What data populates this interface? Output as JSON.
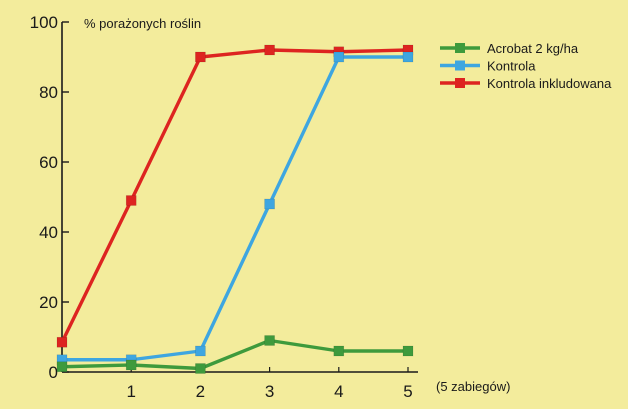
{
  "chart_data": {
    "type": "line",
    "ylabel": "% porażonych roślin",
    "xlabel": "(5 zabiegów)",
    "ylim": [
      0,
      100
    ],
    "xlim": [
      0,
      5
    ],
    "y_ticks": [
      "0",
      "20",
      "40",
      "60",
      "80",
      "100"
    ],
    "x_ticks": [
      "1",
      "2",
      "3",
      "4",
      "5"
    ],
    "x_tick_values": [
      1,
      2,
      3,
      4,
      5
    ],
    "x": [
      0,
      1,
      2,
      3,
      4,
      5
    ],
    "grid": false,
    "legend_position": "top-right",
    "series": [
      {
        "name": "Acrobat 2 kg/ha",
        "color": "#3e9a3c",
        "values": [
          1.5,
          2,
          1,
          9,
          6,
          6
        ]
      },
      {
        "name": "Kontrola",
        "color": "#3ea6e0",
        "values": [
          3.5,
          3.5,
          6,
          48,
          90,
          90
        ]
      },
      {
        "name": "Kontrola inkludowana",
        "color": "#dd2420",
        "values": [
          8.5,
          49,
          90,
          92,
          91.5,
          92
        ]
      }
    ]
  }
}
